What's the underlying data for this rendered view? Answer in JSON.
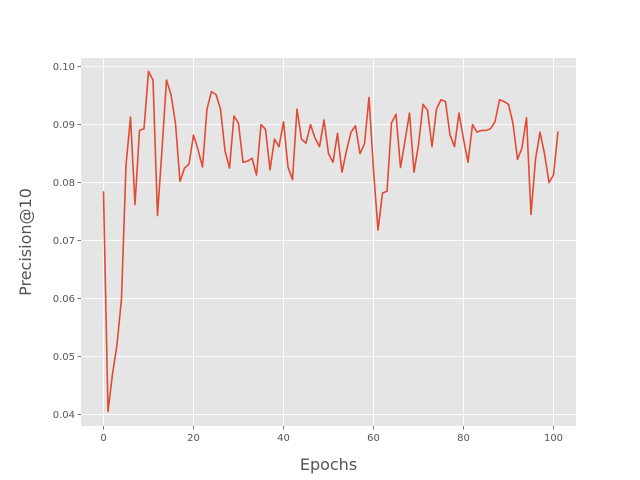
{
  "chart_data": {
    "type": "line",
    "title": "",
    "xlabel": "Epochs",
    "ylabel": "Precision@10",
    "xlim": [
      -5,
      105
    ],
    "ylim": [
      0.038,
      0.1015
    ],
    "xticks": [
      0,
      20,
      40,
      60,
      80,
      100
    ],
    "xtick_labels": [
      "0",
      "20",
      "40",
      "60",
      "80",
      "100"
    ],
    "yticks": [
      0.04,
      0.05,
      0.06,
      0.07,
      0.08,
      0.09,
      0.1
    ],
    "ytick_labels": [
      "0.04",
      "0.05",
      "0.06",
      "0.07",
      "0.08",
      "0.09",
      "0.10"
    ],
    "grid": true,
    "colors": {
      "background": "#e5e5e5",
      "grid": "#ffffff",
      "line": "#e24a33",
      "text": "#555555"
    },
    "series": [
      {
        "values": [
          0.0785,
          0.0405,
          0.047,
          0.052,
          0.06,
          0.083,
          0.0913,
          0.0762,
          0.089,
          0.0893,
          0.0992,
          0.0977,
          0.0743,
          0.0857,
          0.0977,
          0.0952,
          0.0902,
          0.0802,
          0.0825,
          0.0832,
          0.0882,
          0.0857,
          0.0827,
          0.0927,
          0.0957,
          0.0952,
          0.0927,
          0.0855,
          0.0825,
          0.0915,
          0.0902,
          0.0835,
          0.0837,
          0.0842,
          0.0813,
          0.09,
          0.0892,
          0.0822,
          0.0875,
          0.0862,
          0.0905,
          0.0827,
          0.0805,
          0.0927,
          0.0875,
          0.0868,
          0.09,
          0.0877,
          0.0862,
          0.0908,
          0.085,
          0.0835,
          0.0885,
          0.0818,
          0.0855,
          0.0887,
          0.0898,
          0.085,
          0.0867,
          0.0947,
          0.0822,
          0.0718,
          0.0782,
          0.0785,
          0.0903,
          0.0918,
          0.0826,
          0.0872,
          0.092,
          0.0818,
          0.0865,
          0.0935,
          0.0925,
          0.0862,
          0.0927,
          0.0943,
          0.094,
          0.0882,
          0.0862,
          0.092,
          0.0875,
          0.0835,
          0.09,
          0.0887,
          0.089,
          0.089,
          0.0893,
          0.0905,
          0.0943,
          0.094,
          0.0935,
          0.0902,
          0.084,
          0.086,
          0.0912,
          0.0745,
          0.084,
          0.0887,
          0.085,
          0.08,
          0.0813,
          0.0888
        ]
      }
    ]
  }
}
